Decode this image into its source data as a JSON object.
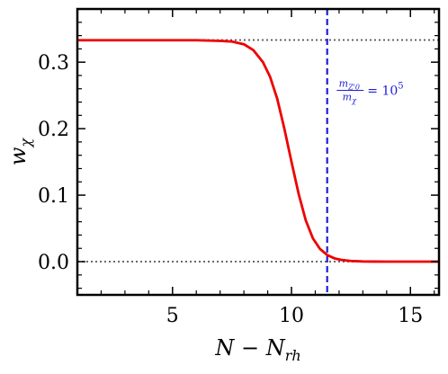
{
  "chart_data": {
    "type": "line",
    "xlabel": "N − N_rh",
    "xlabel_main": "N − N",
    "xlabel_sub": "rh",
    "ylabel_main": "w",
    "ylabel_sub": "χ",
    "xlim": [
      1.0,
      16.2
    ],
    "ylim": [
      -0.05,
      0.38
    ],
    "xticks": [
      5,
      10,
      15
    ],
    "xtick_labels": [
      "5",
      "10",
      "15"
    ],
    "yticks": [
      0.0,
      0.1,
      0.2,
      0.3
    ],
    "ytick_labels": [
      "0.0",
      "0.1",
      "0.2",
      "0.3"
    ],
    "grid": false,
    "series": [
      {
        "color": "#ee0000",
        "style": "solid",
        "x": [
          1.0,
          2.0,
          3.0,
          4.0,
          5.0,
          6.0,
          7.0,
          7.5,
          8.0,
          8.4,
          8.8,
          9.1,
          9.4,
          9.7,
          10.0,
          10.3,
          10.6,
          10.9,
          11.2,
          11.5,
          11.8,
          12.1,
          12.5,
          13.0,
          13.5,
          14.0,
          15.0,
          16.2
        ],
        "y": [
          0.333,
          0.333,
          0.333,
          0.333,
          0.333,
          0.333,
          0.332,
          0.331,
          0.327,
          0.318,
          0.3,
          0.278,
          0.245,
          0.2,
          0.15,
          0.102,
          0.062,
          0.035,
          0.019,
          0.01,
          0.005,
          0.0025,
          0.001,
          0.0003,
          0.0001,
          0.0,
          0.0,
          0.0
        ]
      }
    ],
    "reference_lines": [
      {
        "orientation": "horizontal",
        "y": 0.3333,
        "color": "#555555",
        "style": "dotted"
      },
      {
        "orientation": "horizontal",
        "y": 0.0,
        "color": "#555555",
        "style": "dotted"
      },
      {
        "orientation": "vertical",
        "x": 11.5,
        "color": "#1f1fd6",
        "style": "dashed"
      }
    ],
    "annotation": {
      "numerator": "m",
      "numerator_sub": "Z'0",
      "denominator": "m",
      "denominator_sub": "χ",
      "equals": "= 10",
      "exponent": "5",
      "color": "#1f1fd6",
      "x": 11.9,
      "y": 0.255
    }
  }
}
